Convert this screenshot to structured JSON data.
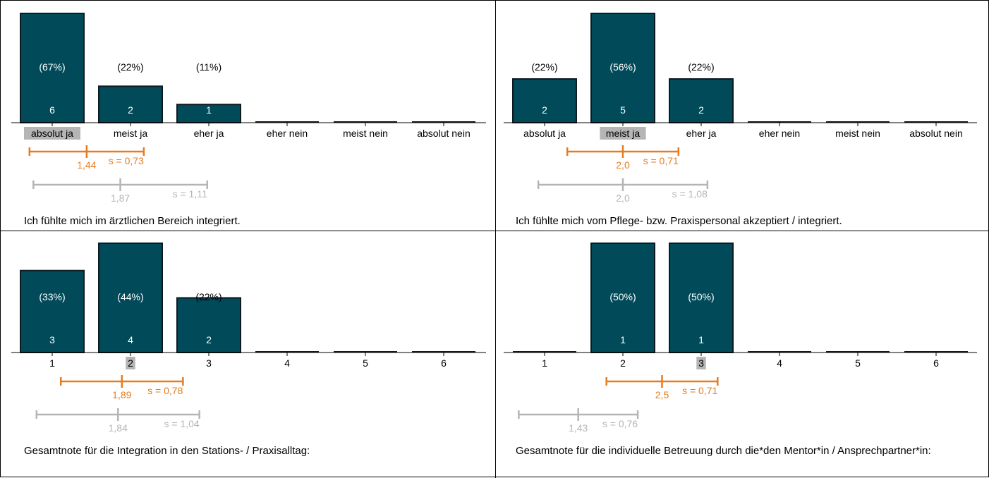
{
  "colors": {
    "bar": "#004a5a",
    "bar_stroke": "#0d1b20",
    "mean": "#e87b1e",
    "reference": "#b5b5b5",
    "highlight_bg": "#b5b5b5"
  },
  "chart_data": [
    {
      "type": "bar",
      "caption": "Ich fühlte mich im ärztlichen Bereich integriert.",
      "categories": [
        "absolut ja",
        "meist ja",
        "eher ja",
        "eher nein",
        "meist nein",
        "absolut nein"
      ],
      "values": [
        6,
        2,
        1,
        0,
        0,
        0
      ],
      "percent_labels": [
        "(67%)",
        "(22%)",
        "(11%)",
        "",
        "",
        ""
      ],
      "highlight_category": 0,
      "mean": {
        "value": 1.44,
        "value_label": "1,44",
        "s_label": "s = 0,73",
        "range": [
          0.71,
          2.17
        ]
      },
      "reference": {
        "value": 1.87,
        "value_label": "1,87",
        "s_label": "s = 1,11",
        "range": [
          0.76,
          2.98
        ]
      }
    },
    {
      "type": "bar",
      "caption": "Ich fühlte mich vom Pflege- bzw. Praxispersonal akzeptiert / integriert.",
      "categories": [
        "absolut ja",
        "meist ja",
        "eher ja",
        "eher nein",
        "meist nein",
        "absolut nein"
      ],
      "values": [
        2,
        5,
        2,
        0,
        0,
        0
      ],
      "percent_labels": [
        "(22%)",
        "(56%)",
        "(22%)",
        "",
        "",
        ""
      ],
      "highlight_category": 1,
      "mean": {
        "value": 2.0,
        "value_label": "2,0",
        "s_label": "s = 0,71",
        "range": [
          1.29,
          2.71
        ]
      },
      "reference": {
        "value": 2.0,
        "value_label": "2,0",
        "s_label": "s = 1,08",
        "range": [
          0.92,
          3.08
        ]
      }
    },
    {
      "type": "bar",
      "caption": "Gesamtnote für die Integration in den Stations- / Praxisalltag:",
      "categories": [
        "1",
        "2",
        "3",
        "4",
        "5",
        "6"
      ],
      "values": [
        3,
        4,
        2,
        0,
        0,
        0
      ],
      "percent_labels": [
        "(33%)",
        "(44%)",
        "(22%)",
        "",
        "",
        ""
      ],
      "highlight_category": 1,
      "mean": {
        "value": 1.89,
        "value_label": "1,89",
        "s_label": "s = 0,78",
        "range": [
          1.11,
          2.67
        ]
      },
      "reference": {
        "value": 1.84,
        "value_label": "1,84",
        "s_label": "s = 1,04",
        "range": [
          0.8,
          2.88
        ]
      }
    },
    {
      "type": "bar",
      "caption": "Gesamtnote für die individuelle Betreuung durch die*den Mentor*in / Ansprechpartner*in:",
      "categories": [
        "1",
        "2",
        "3",
        "4",
        "5",
        "6"
      ],
      "values": [
        0,
        1,
        1,
        0,
        0,
        0
      ],
      "percent_labels": [
        "",
        "(50%)",
        "(50%)",
        "",
        "",
        ""
      ],
      "highlight_category": 2,
      "mean": {
        "value": 2.5,
        "value_label": "2,5",
        "s_label": "s = 0,71",
        "range": [
          1.79,
          3.21
        ]
      },
      "reference": {
        "value": 1.43,
        "value_label": "1,43",
        "s_label": "s = 0,76",
        "range": [
          0.67,
          2.19
        ]
      }
    }
  ]
}
